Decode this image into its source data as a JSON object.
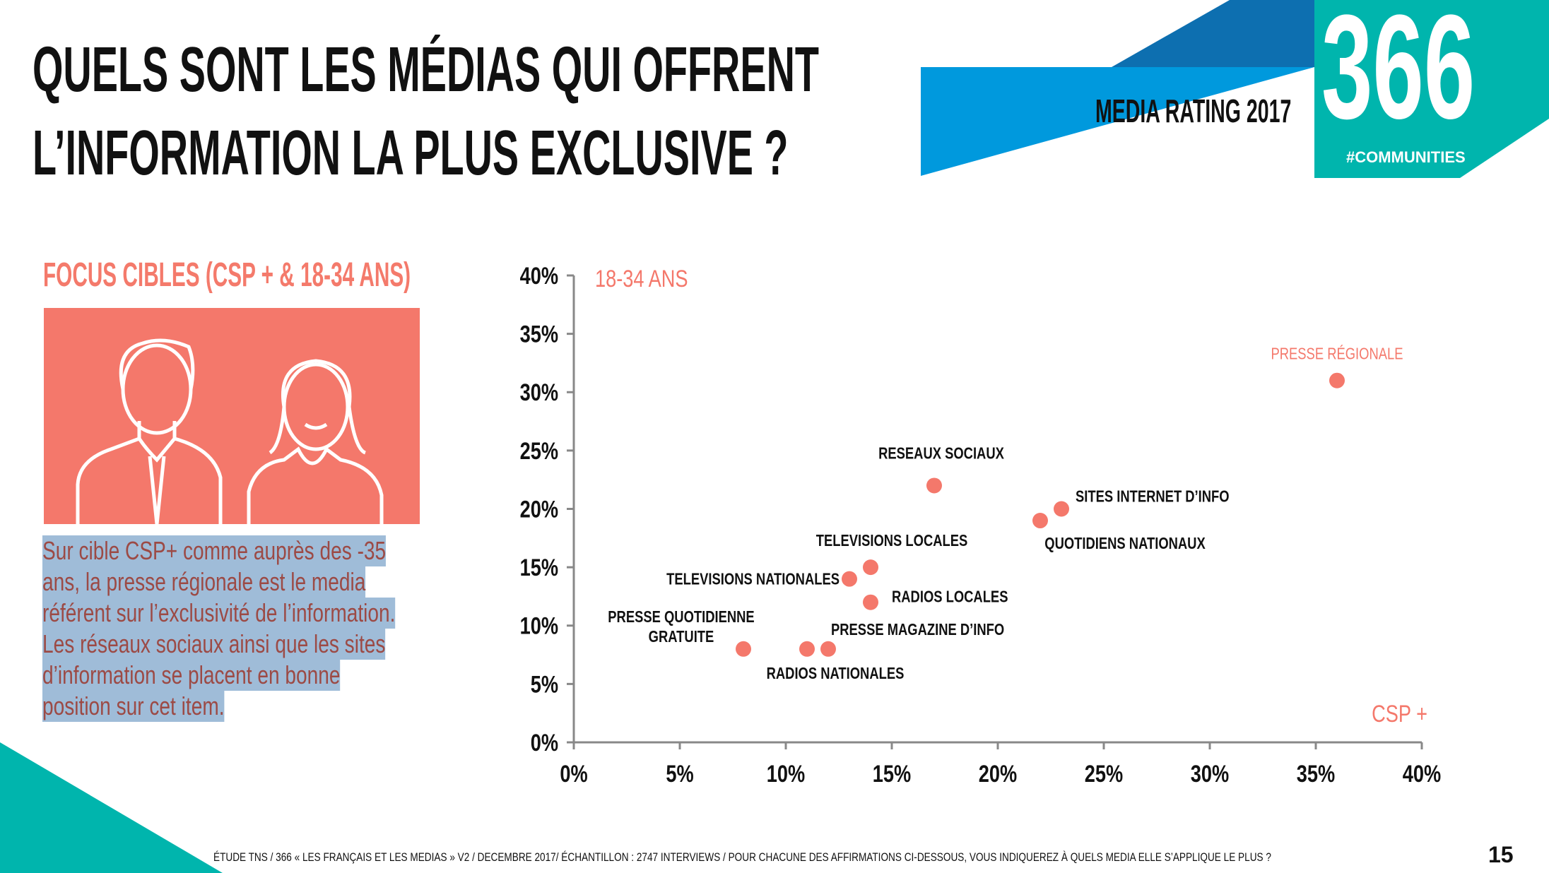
{
  "title": {
    "line1": "QUELS SONT LES MÉDIAS QUI OFFRENT",
    "line2": "L’INFORMATION LA PLUS EXCLUSIVE ?"
  },
  "brand": {
    "media_rating": "MEDIA RATING 2017",
    "logo_number": "366",
    "logo_tag": "#COMMUNITIES",
    "colors": {
      "light_blue": "#0099dd",
      "dark_blue": "#0d6fb0",
      "teal": "#00b5ad"
    }
  },
  "left": {
    "heading": "FOCUS CIBLES (CSP + & 18-34 ANS)",
    "illustration": "man-and-woman-icon",
    "description_lines": [
      "Sur cible CSP+ comme auprès des -35",
      "ans, la presse régionale est le media",
      "référent sur l’exclusivité de l’information.",
      "Les réseaux sociaux ainsi que les sites",
      "d’information se placent en bonne",
      "position sur cet item."
    ]
  },
  "chart_data": {
    "type": "scatter",
    "xlabel": "CSP +",
    "ylabel": "18-34 ANS",
    "xlim": [
      0,
      40
    ],
    "ylim": [
      0,
      40
    ],
    "x_ticks": [
      "0%",
      "5%",
      "10%",
      "15%",
      "20%",
      "25%",
      "30%",
      "35%",
      "40%"
    ],
    "y_ticks": [
      "0%",
      "5%",
      "10%",
      "15%",
      "20%",
      "25%",
      "30%",
      "35%",
      "40%"
    ],
    "grid": false,
    "color": "#f4786b",
    "points": [
      {
        "label": "PRESSE RÉGIONALE",
        "x": 36,
        "y": 31,
        "highlight": true
      },
      {
        "label": "RESEAUX SOCIAUX",
        "x": 17,
        "y": 22
      },
      {
        "label": "SITES INTERNET D’INFO",
        "x": 23,
        "y": 20
      },
      {
        "label": "QUOTIDIENS NATIONAUX",
        "x": 22,
        "y": 19
      },
      {
        "label": "TELEVISIONS LOCALES",
        "x": 14,
        "y": 15
      },
      {
        "label": "TELEVISIONS NATIONALES",
        "x": 13,
        "y": 14
      },
      {
        "label": "RADIOS LOCALES",
        "x": 14,
        "y": 12
      },
      {
        "label": "PRESSE QUOTIDIENNE GRATUITE",
        "x": 8,
        "y": 8
      },
      {
        "label": "RADIOS NATIONALES",
        "x": 11,
        "y": 8
      },
      {
        "label": "PRESSE MAGAZINE D’INFO",
        "x": 12,
        "y": 8
      }
    ]
  },
  "footer": {
    "source": "ÉTUDE TNS / 366 « LES FRANÇAIS ET LES MEDIAS » V2 / DECEMBRE 2017/ ÉCHANTILLON : 2747 INTERVIEWS / POUR CHACUNE DES AFFIRMATIONS CI-DESSOUS, VOUS INDIQUEREZ À QUELS MEDIA ELLE S’APPLIQUE LE PLUS ?",
    "page": "15"
  }
}
